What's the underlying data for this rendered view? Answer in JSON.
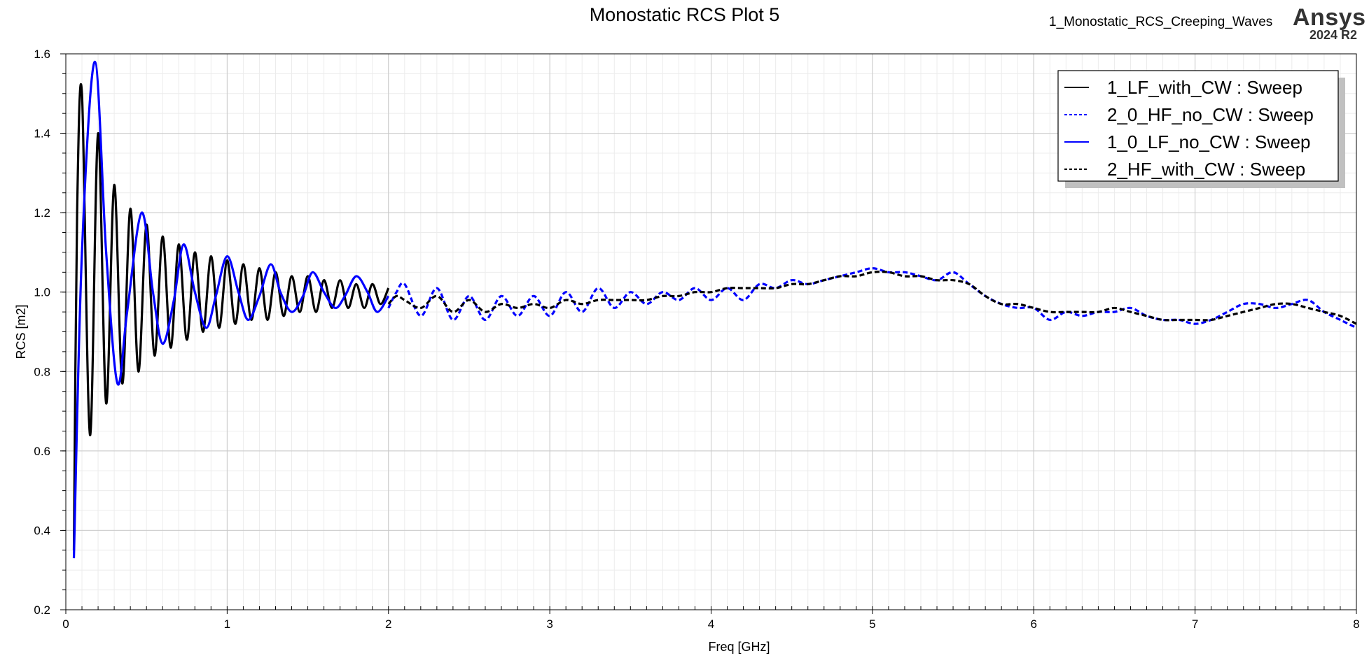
{
  "header": {
    "title": "Monostatic RCS Plot 5",
    "project": "1_Monostatic_RCS_Creeping_Waves",
    "brand": "Ansys",
    "version": "2024 R2"
  },
  "chart_data": {
    "type": "line",
    "title": "Monostatic RCS Plot 5",
    "xlabel": "Freq [GHz]",
    "ylabel": "RCS [m2]",
    "xlim": [
      0,
      8
    ],
    "ylim": [
      0.2,
      1.6
    ],
    "xticks": [
      0,
      1,
      2,
      3,
      4,
      5,
      6,
      7,
      8
    ],
    "yticks": [
      0.2,
      0.4,
      0.6,
      0.8,
      1.0,
      1.2,
      1.4,
      1.6
    ],
    "xtick_labels": [
      "0",
      "1",
      "2",
      "3",
      "4",
      "5",
      "6",
      "7",
      "8"
    ],
    "ytick_labels": [
      "0.2",
      "0.4",
      "0.6",
      "0.8",
      "1.0",
      "1.2",
      "1.4",
      "1.6"
    ],
    "grid": true,
    "legend_position": "top-right",
    "series": [
      {
        "name": "1_LF_with_CW : Sweep",
        "color": "#000000",
        "style": "solid",
        "x": [
          0.05,
          0.07,
          0.1,
          0.15,
          0.2,
          0.25,
          0.3,
          0.35,
          0.4,
          0.45,
          0.5,
          0.55,
          0.6,
          0.65,
          0.7,
          0.75,
          0.8,
          0.85,
          0.9,
          0.95,
          1.0,
          1.05,
          1.1,
          1.15,
          1.2,
          1.25,
          1.3,
          1.35,
          1.4,
          1.45,
          1.5,
          1.55,
          1.6,
          1.65,
          1.7,
          1.75,
          1.8,
          1.85,
          1.9,
          1.95,
          2.0
        ],
        "y": [
          0.35,
          1.2,
          1.5,
          0.64,
          1.4,
          0.72,
          1.27,
          0.77,
          1.21,
          0.8,
          1.17,
          0.84,
          1.14,
          0.86,
          1.12,
          0.88,
          1.1,
          0.9,
          1.09,
          0.91,
          1.08,
          0.92,
          1.07,
          0.93,
          1.06,
          0.93,
          1.05,
          0.94,
          1.04,
          0.95,
          1.04,
          0.95,
          1.03,
          0.96,
          1.03,
          0.96,
          1.02,
          0.96,
          1.02,
          0.97,
          1.01
        ]
      },
      {
        "name": "2_0_HF_no_CW : Sweep",
        "color": "#0000ff",
        "style": "dashed",
        "x": [
          2.0,
          2.05,
          2.1,
          2.2,
          2.3,
          2.4,
          2.5,
          2.6,
          2.7,
          2.8,
          2.9,
          3.0,
          3.1,
          3.2,
          3.3,
          3.4,
          3.5,
          3.6,
          3.7,
          3.8,
          3.9,
          4.0,
          4.1,
          4.2,
          4.3,
          4.4,
          4.5,
          4.6,
          4.7,
          4.8,
          4.9,
          5.0,
          5.1,
          5.2,
          5.3,
          5.4,
          5.5,
          5.6,
          5.7,
          5.8,
          5.9,
          6.0,
          6.1,
          6.2,
          6.3,
          6.4,
          6.5,
          6.6,
          6.7,
          6.8,
          6.9,
          7.0,
          7.1,
          7.2,
          7.3,
          7.4,
          7.5,
          7.6,
          7.7,
          7.8,
          7.9,
          8.0
        ],
        "y": [
          0.96,
          1.0,
          1.02,
          0.94,
          1.01,
          0.93,
          0.99,
          0.93,
          0.99,
          0.94,
          0.99,
          0.94,
          1.0,
          0.95,
          1.01,
          0.96,
          1.0,
          0.97,
          1.0,
          0.98,
          1.01,
          0.98,
          1.01,
          0.98,
          1.02,
          1.01,
          1.03,
          1.02,
          1.03,
          1.04,
          1.05,
          1.06,
          1.05,
          1.05,
          1.04,
          1.03,
          1.05,
          1.02,
          0.99,
          0.97,
          0.96,
          0.96,
          0.93,
          0.95,
          0.94,
          0.95,
          0.95,
          0.96,
          0.94,
          0.93,
          0.93,
          0.92,
          0.93,
          0.95,
          0.97,
          0.97,
          0.96,
          0.97,
          0.98,
          0.95,
          0.93,
          0.91
        ]
      },
      {
        "name": "1_0_LF_no_CW : Sweep",
        "color": "#0000ff",
        "style": "solid",
        "x": [
          0.05,
          0.1,
          0.18,
          0.25,
          0.32,
          0.38,
          0.47,
          0.54,
          0.6,
          0.67,
          0.73,
          0.8,
          0.87,
          0.93,
          1.0,
          1.07,
          1.13,
          1.2,
          1.27,
          1.33,
          1.4,
          1.47,
          1.53,
          1.6,
          1.67,
          1.73,
          1.8,
          1.87,
          1.93,
          2.0
        ],
        "y": [
          0.33,
          1.1,
          1.58,
          1.1,
          0.77,
          0.95,
          1.2,
          1.0,
          0.87,
          0.98,
          1.12,
          1.0,
          0.91,
          0.99,
          1.09,
          1.0,
          0.93,
          0.99,
          1.07,
          1.0,
          0.95,
          0.99,
          1.05,
          1.0,
          0.96,
          0.99,
          1.04,
          1.0,
          0.95,
          0.99
        ]
      },
      {
        "name": "2_HF_with_CW : Sweep",
        "color": "#000000",
        "style": "dashed",
        "x": [
          2.0,
          2.05,
          2.1,
          2.2,
          2.3,
          2.4,
          2.5,
          2.6,
          2.7,
          2.8,
          2.9,
          3.0,
          3.1,
          3.2,
          3.3,
          3.4,
          3.5,
          3.6,
          3.7,
          3.8,
          3.9,
          4.0,
          4.1,
          4.2,
          4.3,
          4.4,
          4.5,
          4.6,
          4.7,
          4.8,
          4.9,
          5.0,
          5.1,
          5.2,
          5.3,
          5.4,
          5.5,
          5.6,
          5.7,
          5.8,
          5.9,
          6.0,
          6.1,
          6.2,
          6.3,
          6.4,
          6.5,
          6.6,
          6.7,
          6.8,
          6.9,
          7.0,
          7.1,
          7.2,
          7.3,
          7.4,
          7.5,
          7.6,
          7.7,
          7.8,
          7.9,
          8.0
        ],
        "y": [
          0.97,
          0.99,
          0.98,
          0.96,
          0.99,
          0.95,
          0.98,
          0.95,
          0.97,
          0.96,
          0.97,
          0.96,
          0.98,
          0.97,
          0.98,
          0.98,
          0.98,
          0.98,
          0.99,
          0.99,
          1.0,
          1.0,
          1.01,
          1.01,
          1.01,
          1.01,
          1.02,
          1.02,
          1.03,
          1.04,
          1.04,
          1.05,
          1.05,
          1.04,
          1.04,
          1.03,
          1.03,
          1.02,
          0.99,
          0.97,
          0.97,
          0.96,
          0.95,
          0.95,
          0.95,
          0.95,
          0.96,
          0.95,
          0.94,
          0.93,
          0.93,
          0.93,
          0.93,
          0.94,
          0.95,
          0.96,
          0.97,
          0.97,
          0.96,
          0.95,
          0.94,
          0.92
        ]
      }
    ]
  }
}
